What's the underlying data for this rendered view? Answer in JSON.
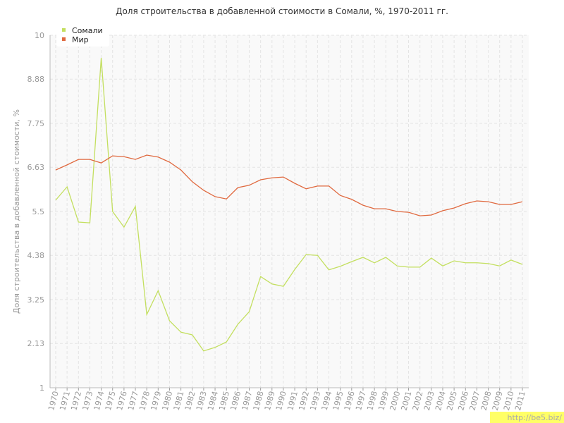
{
  "chart_data": {
    "type": "line",
    "title": "Доля строительства в добавленной стоимости в Сомали, %, 1970-2011 гг.",
    "y_label": "Доля строительства в добавленной стоимости, %",
    "watermark": "http://be5.biz/",
    "categories": [
      "1970",
      "1971",
      "1972",
      "1973",
      "1974",
      "1975",
      "1976",
      "1977",
      "1978",
      "1979",
      "1980",
      "1981",
      "1982",
      "1983",
      "1984",
      "1985",
      "1986",
      "1987",
      "1988",
      "1989",
      "1990",
      "1991",
      "1992",
      "1993",
      "1994",
      "1995",
      "1996",
      "1997",
      "1998",
      "1999",
      "2000",
      "2001",
      "2002",
      "2003",
      "2004",
      "2005",
      "2006",
      "2007",
      "2008",
      "2009",
      "2010",
      "2011"
    ],
    "series": [
      {
        "name": "Сомали",
        "color": "#c3df5f",
        "values": [
          5.79,
          6.13,
          5.23,
          5.21,
          9.42,
          5.5,
          5.1,
          5.63,
          2.87,
          3.48,
          2.71,
          2.42,
          2.35,
          1.94,
          2.03,
          2.17,
          2.62,
          2.94,
          3.84,
          3.65,
          3.59,
          4.02,
          4.4,
          4.38,
          4.01,
          4.1,
          4.22,
          4.33,
          4.19,
          4.33,
          4.11,
          4.08,
          4.08,
          4.31,
          4.11,
          4.24,
          4.19,
          4.19,
          4.17,
          4.11,
          4.26,
          4.15
        ]
      },
      {
        "name": "Мир",
        "color": "#e0693f",
        "values": [
          6.56,
          6.69,
          6.83,
          6.83,
          6.74,
          6.92,
          6.9,
          6.83,
          6.94,
          6.89,
          6.76,
          6.56,
          6.26,
          6.04,
          5.88,
          5.82,
          6.11,
          6.17,
          6.31,
          6.36,
          6.38,
          6.22,
          6.08,
          6.15,
          6.15,
          5.91,
          5.81,
          5.66,
          5.57,
          5.57,
          5.5,
          5.48,
          5.39,
          5.41,
          5.52,
          5.59,
          5.7,
          5.77,
          5.75,
          5.68,
          5.68,
          5.75
        ]
      }
    ],
    "ylim": [
      1,
      10
    ],
    "yticks": [
      1,
      2.13,
      3.25,
      4.38,
      5.5,
      6.63,
      7.75,
      8.88,
      10
    ],
    "grid": true
  }
}
